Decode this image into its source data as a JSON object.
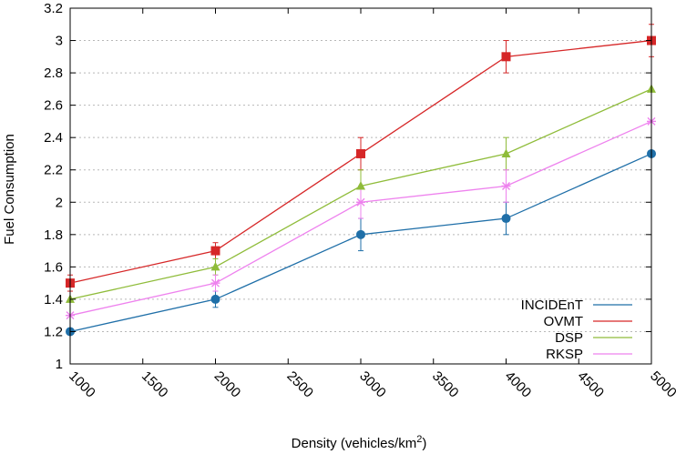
{
  "chart_data": {
    "type": "line",
    "title": "",
    "xlabel": "Density (vehicles/km",
    "xlabel_superscript": "2",
    "xlabel_suffix": ")",
    "ylabel": "Fuel Consumption",
    "xlim": [
      1000,
      5000
    ],
    "ylim": [
      1,
      3.2
    ],
    "x_ticks": [
      1000,
      1500,
      2000,
      2500,
      3000,
      3500,
      4000,
      4500,
      5000
    ],
    "x_tick_labels": [
      "1000",
      "1500",
      "2000",
      "2500",
      "3000",
      "3500",
      "4000",
      "4500",
      "5000"
    ],
    "y_ticks": [
      1,
      1.2,
      1.4,
      1.6,
      1.8,
      2,
      2.2,
      2.4,
      2.6,
      2.8,
      3,
      3.2
    ],
    "y_tick_labels": [
      "1",
      "1.2",
      "1.4",
      "1.6",
      "1.8",
      "2",
      "2.2",
      "2.4",
      "2.6",
      "2.8",
      "3",
      "3.2"
    ],
    "grid": "horizontal dotted",
    "legend_position": "bottom-right",
    "x": [
      1000,
      2000,
      3000,
      4000,
      5000
    ],
    "series": [
      {
        "name": "INCIDEnT",
        "color": "#1f6fa8",
        "marker": "circle",
        "values": [
          1.2,
          1.4,
          1.8,
          1.9,
          2.3
        ],
        "errors": [
          0.0,
          0.05,
          0.1,
          0.1,
          0.0
        ]
      },
      {
        "name": "OVMT",
        "color": "#d62728",
        "marker": "square",
        "values": [
          1.5,
          1.7,
          2.3,
          2.9,
          3.0
        ],
        "errors": [
          0.05,
          0.05,
          0.1,
          0.1,
          0.1
        ]
      },
      {
        "name": "DSP",
        "color": "#8fbc3a",
        "marker": "triangle",
        "values": [
          1.4,
          1.6,
          2.1,
          2.3,
          2.7
        ],
        "errors": [
          0.0,
          0.05,
          0.1,
          0.1,
          0.0
        ]
      },
      {
        "name": "RKSP",
        "color": "#ee82ee",
        "marker": "star",
        "values": [
          1.3,
          1.5,
          2.0,
          2.1,
          2.5
        ],
        "errors": [
          0.0,
          0.05,
          0.1,
          0.1,
          0.0
        ]
      }
    ]
  }
}
